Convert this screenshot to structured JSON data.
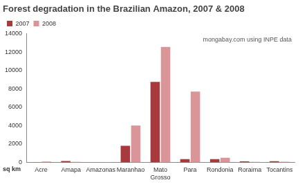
{
  "chart_data": {
    "type": "bar",
    "title": "Forest degradation in the Brazilian Amazon, 2007 & 2008",
    "annotation": "mongabay.com using INPE data",
    "y_label": "sq km",
    "categories": [
      "Acre",
      "Amapa",
      "Amazonas",
      "Maranhao",
      "Mato Grosso",
      "Para",
      "Rondonia",
      "Roraima",
      "Tocantins"
    ],
    "series": [
      {
        "name": "2007",
        "color": "#a8393c",
        "values": [
          20,
          150,
          0,
          1800,
          8750,
          350,
          350,
          100,
          120
        ]
      },
      {
        "name": "2008",
        "color": "#d99597",
        "values": [
          80,
          50,
          10,
          4000,
          12550,
          7700,
          500,
          50,
          60
        ]
      }
    ],
    "ylim": [
      0,
      14000
    ],
    "yticks": [
      0,
      2000,
      4000,
      6000,
      8000,
      10000,
      12000,
      14000
    ],
    "grid": false,
    "legend": "upper left"
  }
}
